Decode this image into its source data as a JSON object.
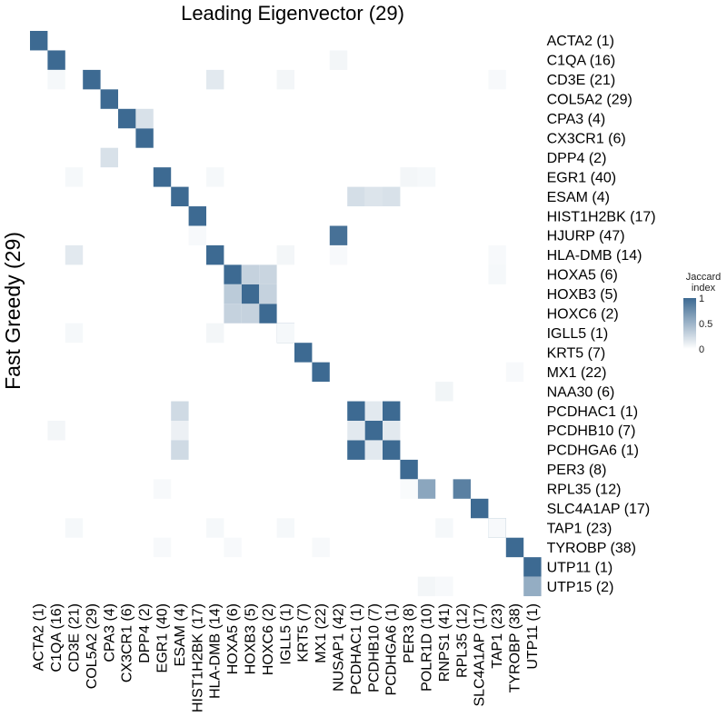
{
  "chart_data": {
    "type": "heatmap",
    "title": "Leading Eigenvector (29)",
    "ylabel": "Fast Greedy (29)",
    "xlabel": "",
    "x_categories": [
      "ACTA2 (1)",
      "C1QA (16)",
      "CD3E (21)",
      "COL5A2 (29)",
      "CPA3 (4)",
      "CX3CR1 (6)",
      "DPP4 (2)",
      "EGR1 (40)",
      "ESAM (4)",
      "HIST1H2BK (17)",
      "HLA-DMB (14)",
      "HOXA5 (6)",
      "HOXB3 (5)",
      "HOXC6 (2)",
      "IGLL5 (1)",
      "KRT5 (7)",
      "MX1 (22)",
      "NUSAP1 (42)",
      "PCDHAC1 (1)",
      "PCDHB10 (7)",
      "PCDHGA6 (1)",
      "PER3 (8)",
      "POLR1D (10)",
      "RNPS1 (41)",
      "RPL35 (12)",
      "SLC4A1AP (17)",
      "TAP1 (23)",
      "TYROBP (38)",
      "UTP11 (1)"
    ],
    "y_categories": [
      "ACTA2 (1)",
      "C1QA (16)",
      "CD3E (21)",
      "COL5A2 (29)",
      "CPA3 (4)",
      "CX3CR1 (6)",
      "DPP4 (2)",
      "EGR1 (40)",
      "ESAM (4)",
      "HIST1H2BK (17)",
      "HJURP (47)",
      "HLA-DMB (14)",
      "HOXA5 (6)",
      "HOXB3 (5)",
      "HOXC6 (2)",
      "IGLL5 (1)",
      "KRT5 (7)",
      "MX1 (22)",
      "NAA30 (6)",
      "PCDHAC1 (1)",
      "PCDHB10 (7)",
      "PCDHGA6 (1)",
      "PER3 (8)",
      "RPL35 (12)",
      "SLC4A1AP (17)",
      "TAP1 (23)",
      "TYROBP (38)",
      "UTP11 (1)",
      "UTP15 (2)"
    ],
    "cells": [
      [
        0,
        0,
        1
      ],
      [
        1,
        1,
        1
      ],
      [
        3,
        2,
        1
      ],
      [
        4,
        3,
        1
      ],
      [
        5,
        4,
        1
      ],
      [
        6,
        5,
        1
      ],
      [
        4,
        6,
        0.2
      ],
      [
        6,
        4,
        0.2
      ],
      [
        7,
        7,
        1
      ],
      [
        8,
        8,
        1
      ],
      [
        9,
        9,
        1
      ],
      [
        17,
        10,
        0.95
      ],
      [
        10,
        11,
        1
      ],
      [
        10,
        2,
        0.15
      ],
      [
        2,
        11,
        0.15
      ],
      [
        11,
        12,
        1
      ],
      [
        12,
        13,
        1
      ],
      [
        13,
        14,
        1
      ],
      [
        11,
        13,
        0.35
      ],
      [
        11,
        14,
        0.3
      ],
      [
        12,
        12,
        0.3
      ],
      [
        12,
        14,
        0.3
      ],
      [
        13,
        12,
        0.28
      ],
      [
        13,
        13,
        0.3
      ],
      [
        14,
        15,
        1
      ],
      [
        15,
        16,
        1
      ],
      [
        16,
        17,
        1
      ],
      [
        18,
        19,
        1
      ],
      [
        18,
        21,
        1
      ],
      [
        19,
        20,
        1
      ],
      [
        20,
        19,
        1
      ],
      [
        20,
        21,
        1
      ],
      [
        18,
        20,
        0.15
      ],
      [
        19,
        19,
        0.15
      ],
      [
        19,
        21,
        0.15
      ],
      [
        20,
        20,
        0.15
      ],
      [
        8,
        19,
        0.25
      ],
      [
        8,
        20,
        0.1
      ],
      [
        8,
        21,
        0.25
      ],
      [
        18,
        8,
        0.22
      ],
      [
        19,
        8,
        0.18
      ],
      [
        20,
        8,
        0.2
      ],
      [
        21,
        22,
        1
      ],
      [
        22,
        23,
        0.6
      ],
      [
        24,
        23,
        0.85
      ],
      [
        25,
        24,
        1
      ],
      [
        26,
        25,
        1
      ],
      [
        27,
        26,
        1
      ],
      [
        28,
        27,
        1
      ],
      [
        28,
        28,
        0.55
      ],
      [
        1,
        2,
        0.05
      ],
      [
        2,
        7,
        0.05
      ],
      [
        10,
        7,
        0.05
      ],
      [
        14,
        2,
        0.06
      ],
      [
        17,
        11,
        0.04
      ],
      [
        14,
        11,
        0.06
      ],
      [
        2,
        15,
        0.05
      ],
      [
        10,
        15,
        0.06
      ],
      [
        14,
        15,
        0.05
      ],
      [
        23,
        18,
        0.07
      ],
      [
        23,
        25,
        0.05
      ],
      [
        26,
        25,
        0.04
      ],
      [
        2,
        25,
        0.05
      ],
      [
        10,
        25,
        0.05
      ],
      [
        14,
        25,
        0.05
      ],
      [
        21,
        7,
        0.06
      ],
      [
        22,
        7,
        0.05
      ],
      [
        7,
        23,
        0.04
      ],
      [
        21,
        23,
        0.03
      ],
      [
        22,
        28,
        0.06
      ],
      [
        23,
        28,
        0.04
      ],
      [
        17,
        1,
        0.06
      ],
      [
        1,
        20,
        0.06
      ],
      [
        26,
        2,
        0.04
      ],
      [
        26,
        11,
        0.04
      ],
      [
        26,
        12,
        0.05
      ],
      [
        27,
        17,
        0.04
      ],
      [
        9,
        10,
        0.04
      ],
      [
        7,
        26,
        0.04
      ],
      [
        16,
        26,
        0.04
      ],
      [
        11,
        26,
        0.04
      ]
    ],
    "legend": {
      "title": "Jaccard\nindex",
      "ticks": [
        "1",
        "0.5",
        "0"
      ],
      "range": [
        0,
        1
      ],
      "position": "right"
    },
    "colors": {
      "low": "#ffffff",
      "high": "#3d6a92"
    },
    "grid": false
  }
}
